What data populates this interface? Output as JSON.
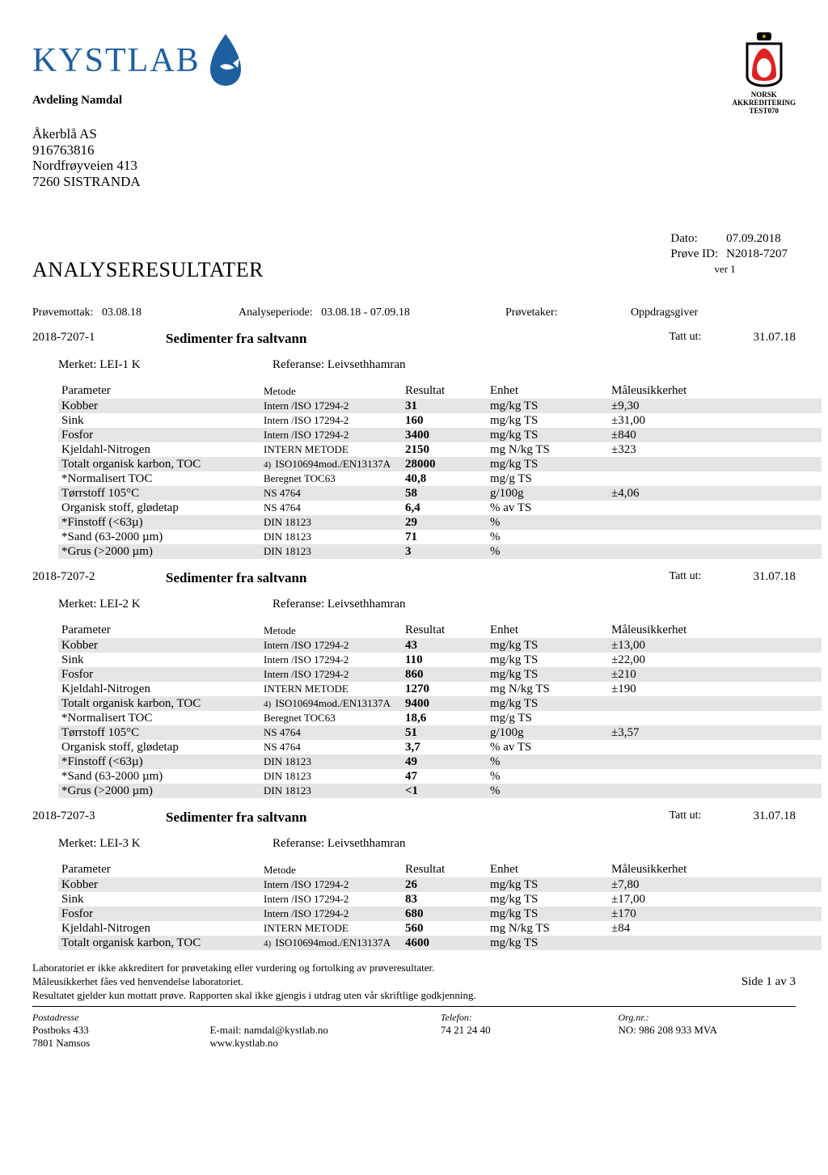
{
  "header": {
    "company_logo_text": "KYSTLAB",
    "avdeling": "Avdeling Namdal",
    "accred_line1": "NORSK",
    "accred_line2": "AKKREDITERING",
    "accred_test": "TEST070"
  },
  "recipient": {
    "name": "Åkerblå AS",
    "orgnr": "916763816",
    "street": "Nordfrøyveien 413",
    "postal": "7260  SISTRANDA"
  },
  "meta": {
    "dato_lbl": "Dato:",
    "dato": "07.09.2018",
    "prove_lbl": "Prøve ID:",
    "prove": "N2018-7207",
    "ver": "ver 1"
  },
  "title": "ANALYSERESULTATER",
  "topline": {
    "mottak_lbl": "Prøvemottak:",
    "mottak": "03.08.18",
    "periode_lbl": "Analyseperiode:",
    "periode": "03.08.18  - 07.09.18",
    "taker_lbl": "Prøvetaker:",
    "giver_lbl": "Oppdragsgiver"
  },
  "columns": {
    "param": "Parameter",
    "metode": "Metode",
    "resultat": "Resultat",
    "enhet": "Enhet",
    "usikker": "Måleusikkerhet"
  },
  "labels": {
    "tattut": "Tatt ut:",
    "merket": "Merket:",
    "referanse": "Referanse:"
  },
  "samples": [
    {
      "id": "2018-7207-1",
      "title": "Sedimenter fra saltvann",
      "tattut": "31.07.18",
      "merket": "LEI-1 K",
      "referanse": "Leivsethhamran",
      "rows": [
        {
          "shade": true,
          "param": "Kobber",
          "note": "",
          "metode": "Intern /ISO 17294-2",
          "res": "31",
          "unit": "mg/kg TS",
          "unc": "±9,30"
        },
        {
          "shade": false,
          "param": "Sink",
          "note": "",
          "metode": "Intern /ISO 17294-2",
          "res": "160",
          "unit": "mg/kg TS",
          "unc": "±31,00"
        },
        {
          "shade": true,
          "param": "Fosfor",
          "note": "",
          "metode": "Intern /ISO 17294-2",
          "res": "3400",
          "unit": "mg/kg TS",
          "unc": "±840"
        },
        {
          "shade": false,
          "param": "Kjeldahl-Nitrogen",
          "note": "",
          "metode": "INTERN METODE",
          "res": "2150",
          "unit": "mg N/kg TS",
          "unc": "±323"
        },
        {
          "shade": true,
          "param": "Totalt organisk karbon, TOC",
          "note": "4)",
          "metode": "ISO10694mod./EN13137A",
          "res": "28000",
          "unit": "mg/kg TS",
          "unc": ""
        },
        {
          "shade": false,
          "param": "*Normalisert TOC",
          "note": "",
          "metode": "Beregnet TOC63",
          "res": "40,8",
          "unit": "mg/g TS",
          "unc": ""
        },
        {
          "shade": true,
          "param": "Tørrstoff 105°C",
          "note": "",
          "metode": "NS 4764",
          "res": "58",
          "unit": "g/100g",
          "unc": "±4,06"
        },
        {
          "shade": false,
          "param": "Organisk stoff, glødetap",
          "note": "",
          "metode": "NS 4764",
          "res": "6,4",
          "unit": "% av TS",
          "unc": ""
        },
        {
          "shade": true,
          "param": "*Finstoff (<63µ)",
          "note": "",
          "metode": "DIN 18123",
          "res": "29",
          "unit": "%",
          "unc": ""
        },
        {
          "shade": false,
          "param": "*Sand (63-2000 µm)",
          "note": "",
          "metode": "DIN 18123",
          "res": "71",
          "unit": "%",
          "unc": ""
        },
        {
          "shade": true,
          "param": "*Grus (>2000 µm)",
          "note": "",
          "metode": "DIN 18123",
          "res": "3",
          "unit": "%",
          "unc": ""
        }
      ]
    },
    {
      "id": "2018-7207-2",
      "title": "Sedimenter fra saltvann",
      "tattut": "31.07.18",
      "merket": "LEI-2 K",
      "referanse": "Leivsethhamran",
      "rows": [
        {
          "shade": true,
          "param": "Kobber",
          "note": "",
          "metode": "Intern /ISO 17294-2",
          "res": "43",
          "unit": "mg/kg TS",
          "unc": "±13,00"
        },
        {
          "shade": false,
          "param": "Sink",
          "note": "",
          "metode": "Intern /ISO 17294-2",
          "res": "110",
          "unit": "mg/kg TS",
          "unc": "±22,00"
        },
        {
          "shade": true,
          "param": "Fosfor",
          "note": "",
          "metode": "Intern /ISO 17294-2",
          "res": "860",
          "unit": "mg/kg TS",
          "unc": "±210"
        },
        {
          "shade": false,
          "param": "Kjeldahl-Nitrogen",
          "note": "",
          "metode": "INTERN METODE",
          "res": "1270",
          "unit": "mg N/kg TS",
          "unc": "±190"
        },
        {
          "shade": true,
          "param": "Totalt organisk karbon, TOC",
          "note": "4)",
          "metode": "ISO10694mod./EN13137A",
          "res": "9400",
          "unit": "mg/kg TS",
          "unc": ""
        },
        {
          "shade": false,
          "param": "*Normalisert TOC",
          "note": "",
          "metode": "Beregnet TOC63",
          "res": "18,6",
          "unit": "mg/g TS",
          "unc": ""
        },
        {
          "shade": true,
          "param": "Tørrstoff 105°C",
          "note": "",
          "metode": "NS 4764",
          "res": "51",
          "unit": "g/100g",
          "unc": "±3,57"
        },
        {
          "shade": false,
          "param": "Organisk stoff, glødetap",
          "note": "",
          "metode": "NS 4764",
          "res": "3,7",
          "unit": "% av TS",
          "unc": ""
        },
        {
          "shade": true,
          "param": "*Finstoff (<63µ)",
          "note": "",
          "metode": "DIN 18123",
          "res": "49",
          "unit": "%",
          "unc": ""
        },
        {
          "shade": false,
          "param": "*Sand (63-2000 µm)",
          "note": "",
          "metode": "DIN 18123",
          "res": "47",
          "unit": "%",
          "unc": ""
        },
        {
          "shade": true,
          "param": "*Grus (>2000 µm)",
          "note": "",
          "metode": "DIN 18123",
          "res": "<1",
          "unit": "%",
          "unc": ""
        }
      ]
    },
    {
      "id": "2018-7207-3",
      "title": "Sedimenter fra saltvann",
      "tattut": "31.07.18",
      "merket": "LEI-3 K",
      "referanse": "Leivsethhamran",
      "rows": [
        {
          "shade": true,
          "param": "Kobber",
          "note": "",
          "metode": "Intern /ISO 17294-2",
          "res": "26",
          "unit": "mg/kg TS",
          "unc": "±7,80"
        },
        {
          "shade": false,
          "param": "Sink",
          "note": "",
          "metode": "Intern /ISO 17294-2",
          "res": "83",
          "unit": "mg/kg TS",
          "unc": "±17,00"
        },
        {
          "shade": true,
          "param": "Fosfor",
          "note": "",
          "metode": "Intern /ISO 17294-2",
          "res": "680",
          "unit": "mg/kg TS",
          "unc": "±170"
        },
        {
          "shade": false,
          "param": "Kjeldahl-Nitrogen",
          "note": "",
          "metode": "INTERN METODE",
          "res": "560",
          "unit": "mg N/kg TS",
          "unc": "±84"
        },
        {
          "shade": true,
          "param": "Totalt organisk karbon, TOC",
          "note": "4)",
          "metode": "ISO10694mod./EN13137A",
          "res": "4600",
          "unit": "mg/kg TS",
          "unc": ""
        }
      ]
    }
  ],
  "disclaimer": {
    "l1": "Laboratoriet er ikke akkreditert for prøvetaking eller vurdering og fortolking av prøveresultater.",
    "l2": "Måleusikkerhet fåes ved henvendelse laboratoriet.",
    "l3": "Resultatet gjelder kun mottatt prøve. Rapporten skal ikke gjengis i utdrag uten vår skriftlige godkjenning.",
    "page": "Side 1 av 3"
  },
  "footer": {
    "post_lbl": "Postadresse",
    "post1": "Postboks 433",
    "post2": "7801  Namsos",
    "email_lbl": "E-mail:",
    "email": "namdal@kystlab.no",
    "web": "www.kystlab.no",
    "tel_lbl": "Telefon:",
    "tel": "74 21 24 40",
    "org_lbl": "Org.nr.:",
    "org": "NO: 986 208 933 MVA"
  }
}
